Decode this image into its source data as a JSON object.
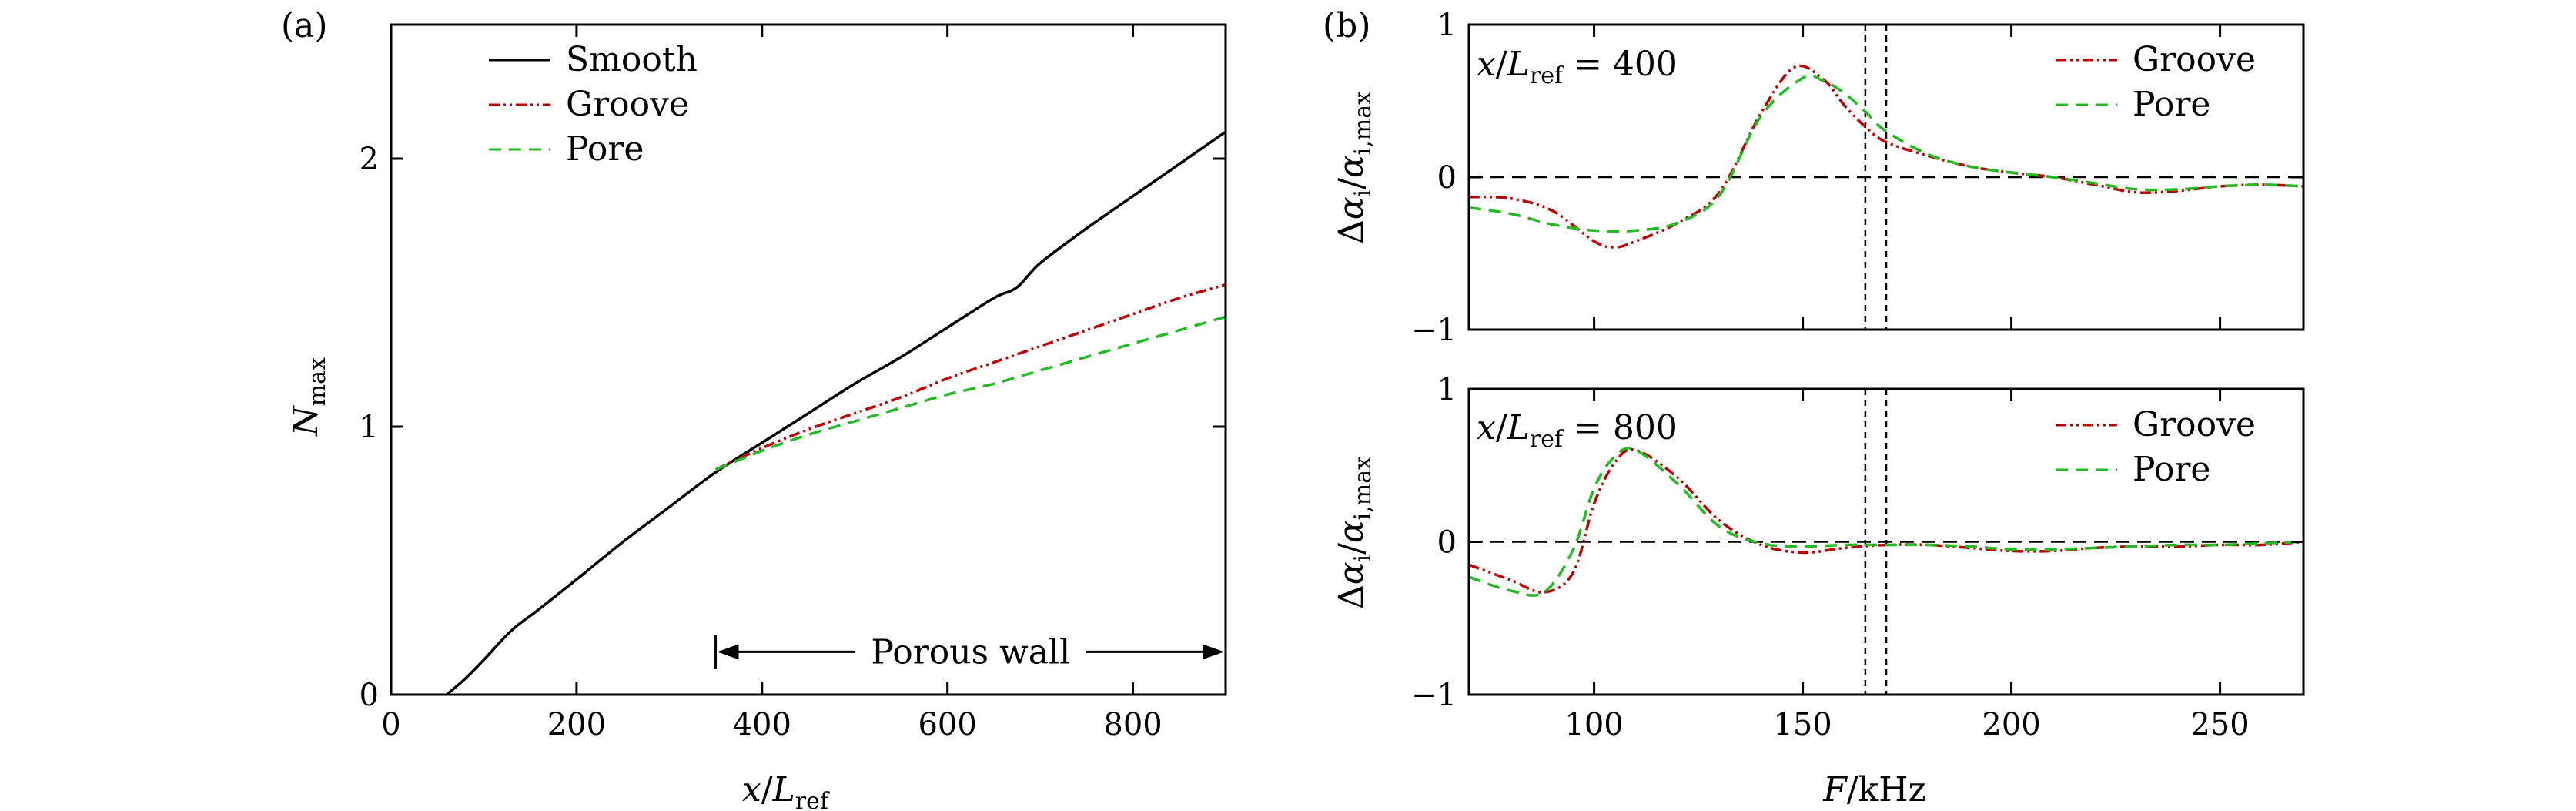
{
  "colors": {
    "smooth": "#000000",
    "groove": "#c00000",
    "pore": "#22bb22",
    "axis": "#000000"
  },
  "chart_data": [
    {
      "id": "a",
      "type": "line",
      "panel_label": "(a)",
      "xlabel": "x/L_ref",
      "ylabel": "N_max",
      "xlim": [
        0,
        900
      ],
      "ylim": [
        0,
        2.5
      ],
      "xticks": [
        0,
        200,
        400,
        600,
        800
      ],
      "yticks": [
        0,
        1,
        2
      ],
      "grid": false,
      "legend": "top-left",
      "series": [
        {
          "name": "Smooth",
          "style": "solid",
          "x": [
            60,
            80,
            100,
            130,
            160,
            200,
            250,
            300,
            350,
            400,
            450,
            500,
            550,
            600,
            650,
            675,
            700,
            750,
            800,
            850,
            900
          ],
          "y": [
            0,
            0.06,
            0.13,
            0.24,
            0.32,
            0.43,
            0.57,
            0.7,
            0.83,
            0.94,
            1.05,
            1.16,
            1.26,
            1.37,
            1.48,
            1.52,
            1.61,
            1.74,
            1.86,
            1.98,
            2.1
          ]
        },
        {
          "name": "Groove",
          "style": "dashdotdot",
          "x": [
            350,
            400,
            450,
            500,
            550,
            600,
            650,
            700,
            750,
            800,
            850,
            900
          ],
          "y": [
            0.84,
            0.92,
            0.99,
            1.05,
            1.11,
            1.18,
            1.24,
            1.3,
            1.36,
            1.42,
            1.48,
            1.53
          ]
        },
        {
          "name": "Pore",
          "style": "dash",
          "x": [
            350,
            400,
            450,
            500,
            550,
            600,
            650,
            700,
            750,
            800,
            850,
            900
          ],
          "y": [
            0.84,
            0.91,
            0.97,
            1.02,
            1.07,
            1.12,
            1.16,
            1.21,
            1.26,
            1.31,
            1.36,
            1.41
          ]
        }
      ],
      "annotations": [
        {
          "text": "Porous wall",
          "arrow_from": 350,
          "arrow_to": 900,
          "y": 0.16
        }
      ]
    },
    {
      "id": "b1",
      "type": "line",
      "panel_label": "(b)",
      "annotation": "x/L_ref = 400",
      "xlabel": "",
      "ylabel": "Δα_i/α_i,max",
      "xlim": [
        70,
        270
      ],
      "ylim": [
        -1,
        1
      ],
      "xticks": [
        100,
        150,
        200,
        250
      ],
      "yticks": [
        -1,
        0,
        1
      ],
      "grid": false,
      "legend": "top-right",
      "reference_lines": {
        "horizontal": [
          0
        ],
        "vertical": [
          165,
          170
        ]
      },
      "series": [
        {
          "name": "Groove",
          "style": "dashdotdot",
          "x": [
            70,
            80,
            90,
            100,
            105,
            110,
            120,
            130,
            140,
            148,
            155,
            160,
            165,
            170,
            180,
            190,
            200,
            210,
            220,
            230,
            240,
            250,
            260,
            270
          ],
          "y": [
            -0.13,
            -0.14,
            -0.22,
            -0.42,
            -0.46,
            -0.42,
            -0.3,
            -0.1,
            0.42,
            0.72,
            0.64,
            0.47,
            0.33,
            0.23,
            0.14,
            0.07,
            0.03,
            0.0,
            -0.05,
            -0.1,
            -0.09,
            -0.06,
            -0.05,
            -0.06
          ]
        },
        {
          "name": "Pore",
          "style": "dash",
          "x": [
            70,
            80,
            90,
            100,
            110,
            120,
            130,
            140,
            150,
            155,
            160,
            165,
            170,
            180,
            190,
            200,
            210,
            220,
            230,
            240,
            250,
            260,
            270
          ],
          "y": [
            -0.2,
            -0.24,
            -0.31,
            -0.35,
            -0.35,
            -0.3,
            -0.12,
            0.4,
            0.65,
            0.63,
            0.55,
            0.43,
            0.3,
            0.15,
            0.07,
            0.03,
            0.0,
            -0.04,
            -0.08,
            -0.08,
            -0.06,
            -0.05,
            -0.06
          ]
        }
      ]
    },
    {
      "id": "b2",
      "type": "line",
      "panel_label": "",
      "annotation": "x/L_ref = 800",
      "xlabel": "F/kHz",
      "ylabel": "Δα_i/α_i,max",
      "xlim": [
        70,
        270
      ],
      "ylim": [
        -1,
        1
      ],
      "xticks": [
        100,
        150,
        200,
        250
      ],
      "yticks": [
        -1,
        0,
        1
      ],
      "grid": false,
      "legend": "top-right",
      "reference_lines": {
        "horizontal": [
          0
        ],
        "vertical": [
          165,
          170
        ]
      },
      "series": [
        {
          "name": "Groove",
          "style": "dashdotdot",
          "x": [
            70,
            80,
            88,
            95,
            100,
            105,
            110,
            120,
            130,
            140,
            150,
            160,
            170,
            180,
            190,
            200,
            210,
            220,
            230,
            240,
            250,
            260,
            270
          ],
          "y": [
            -0.15,
            -0.25,
            -0.33,
            -0.2,
            0.25,
            0.52,
            0.6,
            0.42,
            0.14,
            -0.02,
            -0.07,
            -0.04,
            -0.02,
            -0.02,
            -0.04,
            -0.06,
            -0.06,
            -0.04,
            -0.03,
            -0.03,
            -0.02,
            -0.02,
            0.0
          ]
        },
        {
          "name": "Pore",
          "style": "dash",
          "x": [
            70,
            80,
            88,
            95,
            100,
            105,
            110,
            120,
            130,
            140,
            150,
            160,
            170,
            180,
            190,
            200,
            210,
            220,
            230,
            240,
            250,
            260,
            270
          ],
          "y": [
            -0.23,
            -0.32,
            -0.33,
            -0.05,
            0.35,
            0.56,
            0.6,
            0.38,
            0.1,
            -0.01,
            -0.03,
            -0.02,
            -0.02,
            -0.02,
            -0.03,
            -0.05,
            -0.05,
            -0.04,
            -0.03,
            -0.02,
            -0.02,
            -0.01,
            0.0
          ]
        }
      ]
    }
  ]
}
